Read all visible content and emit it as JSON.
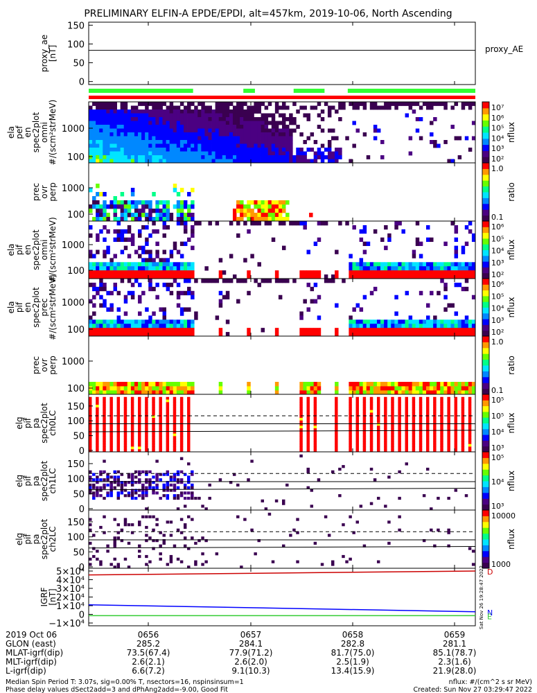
{
  "title": "PRELIMINARY ELFIN-A EPDE/EPDI, alt=457km, 2019-10-06, North Ascending",
  "colors": {
    "red": "#ff0000",
    "green": "#33ff33",
    "dark_red": "#cc0000",
    "blue": "#0000ff",
    "cbar": [
      "#3a0050",
      "#4b0082",
      "#0000ff",
      "#0088ff",
      "#00e5ff",
      "#00ff88",
      "#66ff00",
      "#ffff00",
      "#ff9900",
      "#ff0000"
    ]
  },
  "chart_data": [
    {
      "id": "proxy_ae",
      "type": "line",
      "ylabel": [
        "proxy_ae",
        "[nT]"
      ],
      "yticks": [
        "150",
        "100",
        "50",
        "0"
      ],
      "ylim": [
        -8,
        158
      ],
      "y_value": 83,
      "legend": "proxy_AE"
    },
    {
      "id": "science_bars",
      "type": "bar",
      "green_segments": [
        [
          0.0,
          0.27
        ],
        [
          0.4,
          0.43
        ],
        [
          0.53,
          0.61
        ],
        [
          0.67,
          1.0
        ]
      ],
      "red_segment": [
        0.0,
        1.0
      ]
    },
    {
      "id": "ela_pef_en_omni",
      "type": "heatmap",
      "ylabel": [
        "ela",
        "pef",
        "en",
        "spec2plot",
        "omni",
        "#/(scm²strMeV)"
      ],
      "yticks": [
        "1000",
        "100"
      ],
      "cbar_ticks": [
        "10⁷",
        "10⁶",
        "10⁵",
        "10⁴",
        "10³",
        "10²"
      ],
      "cbar_label": "nflux"
    },
    {
      "id": "ela_prec_ovr_perp",
      "type": "heatmap",
      "ylabel": [
        "prec",
        "ovr",
        "perp"
      ],
      "yticks": [
        "1000",
        "100"
      ],
      "cbar_ticks": [
        "1.0",
        "0.1"
      ],
      "cbar_label": "ratio"
    },
    {
      "id": "ela_pif_en_omni",
      "type": "heatmap",
      "ylabel": [
        "ela",
        "pif",
        "en",
        "spec2plot",
        "omni",
        "#/(scm²strMeV)"
      ],
      "yticks": [
        "1000",
        "100"
      ],
      "cbar_ticks": [
        "10⁶",
        "10⁵",
        "10⁴",
        "10³",
        "10²"
      ],
      "cbar_label": "nflux"
    },
    {
      "id": "ela_pif_en_prec",
      "type": "heatmap",
      "ylabel": [
        "ela",
        "pif",
        "en",
        "spec2plot",
        "prec",
        "#/(scm²strMeV)"
      ],
      "yticks": [
        "1000",
        "100"
      ],
      "cbar_ticks": [
        "10⁶",
        "10⁵",
        "10⁴",
        "10³",
        "10²"
      ],
      "cbar_label": "nflux"
    },
    {
      "id": "pif_prec_ovr_perp",
      "type": "heatmap",
      "ylabel": [
        "prec",
        "ovr",
        "perp"
      ],
      "yticks": [
        "1000",
        "100"
      ],
      "cbar_ticks": [
        "1.0",
        "0.1"
      ],
      "cbar_label": "ratio"
    },
    {
      "id": "elg_pif_pa_ch0LC",
      "type": "heatmap",
      "ylabel": [
        "elg",
        "pif",
        "pa",
        "spec2plot",
        "ch0LC"
      ],
      "yticks": [
        "150",
        "100",
        "50",
        "0"
      ],
      "cbar_ticks": [
        "10⁵",
        "10⁵",
        "10⁴",
        "10³"
      ],
      "cbar_label": "nflux"
    },
    {
      "id": "elg_pif_pa_ch1LC",
      "type": "heatmap",
      "ylabel": [
        "elg",
        "pif",
        "pa",
        "spec2plot",
        "ch1LC"
      ],
      "yticks": [
        "150",
        "100",
        "50",
        "0"
      ],
      "cbar_ticks": [
        "10⁵",
        "10⁴",
        "10³"
      ],
      "cbar_label": "nflux"
    },
    {
      "id": "elg_pif_pa_ch2LC",
      "type": "heatmap",
      "ylabel": [
        "elg",
        "pif",
        "pa",
        "spec2plot",
        "ch2LC"
      ],
      "yticks": [
        "150",
        "100",
        "50",
        "0"
      ],
      "cbar_ticks": [
        "10000",
        "1000"
      ],
      "cbar_label": "nflux"
    },
    {
      "id": "igrf",
      "type": "line",
      "ylabel": [
        "IGRF",
        "[nT]"
      ],
      "yticks": [
        "5×10⁴",
        "4×10⁴",
        "3×10⁴",
        "2×10⁴",
        "1×10⁴",
        "0",
        "−1×10⁴"
      ],
      "ylim": [
        -10000,
        50000
      ],
      "series": [
        {
          "name": "D",
          "color": "#cc0000",
          "values": [
            45500,
            50000
          ]
        },
        {
          "name": "N",
          "color": "#0000ff",
          "values": [
            11000,
            3000
          ]
        },
        {
          "name": "E",
          "color": "#33cc33",
          "values": [
            -1500,
            -1500
          ]
        }
      ],
      "side_text": "Sat Nov 26 19:28:47 2022"
    }
  ],
  "xaxis": {
    "times": [
      "0656",
      "0657",
      "0658",
      "0659"
    ],
    "rows": [
      {
        "label": "2019 Oct 06",
        "values": [
          "0656",
          "0657",
          "0658",
          "0659"
        ]
      },
      {
        "label": "GLON (east)",
        "values": [
          "285.2",
          "284.1",
          "282.8",
          "281.1"
        ]
      },
      {
        "label": "MLAT-igrf(dip)",
        "values": [
          "73.5(67.4)",
          "77.9(71.2)",
          "81.7(75.0)",
          "85.1(78.7)"
        ]
      },
      {
        "label": "MLT-igrf(dip)",
        "values": [
          "2.6(2.1)",
          "2.6(2.0)",
          "2.5(1.9)",
          "2.3(1.6)"
        ]
      },
      {
        "label": "L-igrf(dip)",
        "values": [
          "6.6(7.2)",
          "9.1(10.3)",
          "13.4(15.9)",
          "21.9(28.0)"
        ]
      }
    ]
  },
  "footer": {
    "left1": "Median Spin Period T: 3.07s, sig=0.00% T, nsectors=16, nspinsinsum=1",
    "left2": "Phase delay values dSect2add=3 and dPhAng2add=-9.00, Good Fit",
    "right1": "nflux: #/(cm^2 s sr MeV)",
    "right2": "Created: Sun Nov 27 03:29:47 2022"
  }
}
